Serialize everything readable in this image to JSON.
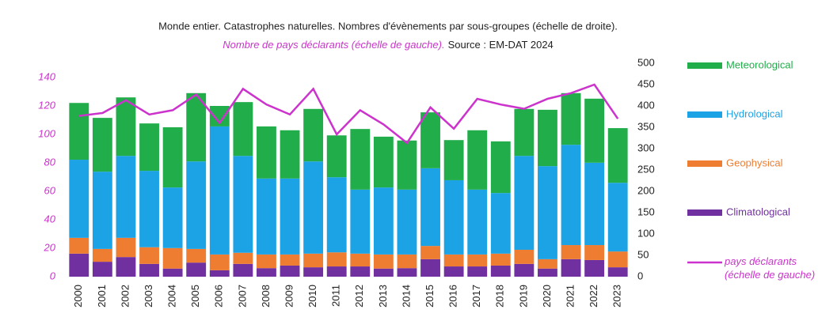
{
  "chart_data": {
    "type": "bar",
    "title": "Monde entier. Catastrophes naturelles. Nombres d'évènements par sous-groupes (échelle de droite).",
    "subtitle": "Nombre de pays déclarants (échelle de gauche).",
    "source": "Source : EM-DAT 2024",
    "stacked": true,
    "categories": [
      "2000",
      "2001",
      "2002",
      "2003",
      "2004",
      "2005",
      "2006",
      "2007",
      "2008",
      "2009",
      "2010",
      "2011",
      "2012",
      "2013",
      "2014",
      "2015",
      "2016",
      "2017",
      "2018",
      "2019",
      "2020",
      "2021",
      "2022",
      "2023"
    ],
    "series": [
      {
        "name": "Climatological",
        "color": "#7030a0",
        "axis": "y2",
        "values": [
          54,
          35,
          46,
          30,
          19,
          33,
          15,
          30,
          20,
          26,
          22,
          24,
          24,
          19,
          20,
          41,
          24,
          24,
          26,
          30,
          19,
          41,
          39,
          22
        ]
      },
      {
        "name": "Geophysical",
        "color": "#ee7d31",
        "axis": "y2",
        "values": [
          37,
          30,
          45,
          39,
          48,
          32,
          37,
          26,
          32,
          26,
          32,
          33,
          30,
          33,
          32,
          31,
          28,
          28,
          28,
          33,
          22,
          33,
          35,
          37
        ]
      },
      {
        "name": "Hydrological",
        "color": "#1ca3e6",
        "axis": "y2",
        "values": [
          183,
          181,
          192,
          179,
          142,
          205,
          300,
          227,
          178,
          178,
          216,
          176,
          150,
          157,
          152,
          182,
          174,
          152,
          142,
          220,
          218,
          235,
          193,
          161
        ]
      },
      {
        "name": "Meteorological",
        "color": "#22ad4b",
        "axis": "y2",
        "values": [
          133,
          126,
          137,
          111,
          141,
          160,
          48,
          126,
          122,
          113,
          123,
          98,
          142,
          119,
          115,
          131,
          94,
          139,
          121,
          110,
          132,
          121,
          150,
          128
        ]
      },
      {
        "name": "pays déclarants (échelle de gauche)",
        "color": "#cc33cc",
        "type": "line",
        "axis": "y",
        "values": [
          113,
          115,
          124,
          114,
          117,
          128,
          108,
          132,
          121,
          114,
          132,
          100,
          117,
          107,
          94,
          119,
          104,
          125,
          121,
          118,
          125,
          129,
          135,
          111
        ]
      }
    ],
    "ylim": [
      0,
      150
    ],
    "yticks": [
      0,
      20,
      40,
      60,
      80,
      100,
      120,
      140
    ],
    "y2lim": [
      0,
      500
    ],
    "y2ticks": [
      0,
      50,
      100,
      150,
      200,
      250,
      300,
      350,
      400,
      450,
      500
    ],
    "legend": "right"
  }
}
